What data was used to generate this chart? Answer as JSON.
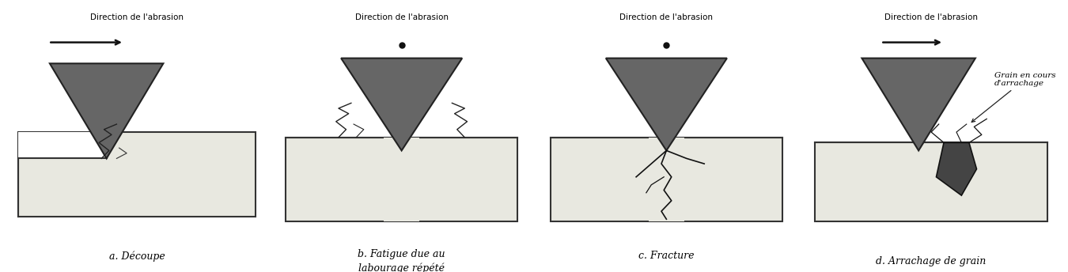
{
  "bg_color": "#ffffff",
  "grain_color": "#666666",
  "grain_edge": "#222222",
  "material_color": "#e8e8e0",
  "material_edge": "#333333",
  "title_texts": [
    "Direction de l'abrasion",
    "Direction de l'abrasion",
    "Direction de l'abrasion",
    "Direction de l'abrasion"
  ],
  "caption_texts": [
    "a. Découpe",
    "b. Fatigue due au\nlabourage répété",
    "c. Fracture",
    "d. Arrachage de grain"
  ],
  "grain_annotation": "Grain en cours\nd'arrachage",
  "figsize": [
    13.5,
    3.44
  ],
  "dpi": 100
}
